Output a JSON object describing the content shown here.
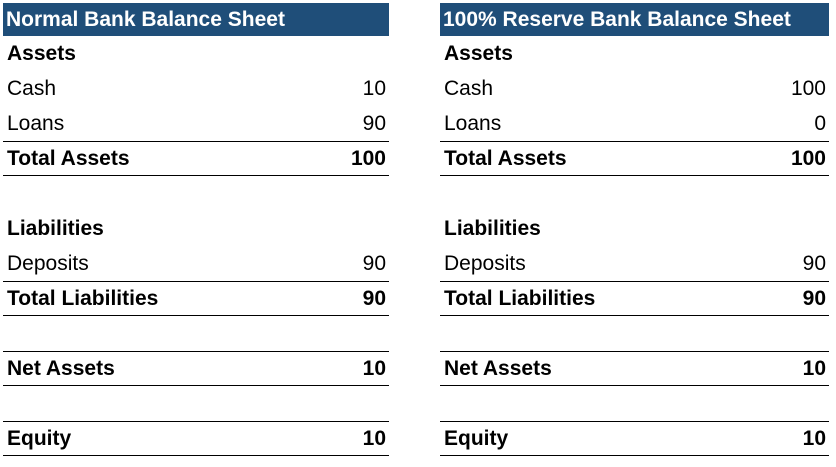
{
  "normal": {
    "title": "Normal Bank Balance Sheet",
    "assets_heading": "Assets",
    "cash_label": "Cash",
    "cash_value": "10",
    "loans_label": "Loans",
    "loans_value": "90",
    "total_assets_label": "Total Assets",
    "total_assets_value": "100",
    "liabilities_heading": "Liabilities",
    "deposits_label": "Deposits",
    "deposits_value": "90",
    "total_liabilities_label": "Total Liabilities",
    "total_liabilities_value": "90",
    "net_assets_label": "Net Assets",
    "net_assets_value": "10",
    "equity_label": "Equity",
    "equity_value": "10"
  },
  "reserve": {
    "title": "100% Reserve Bank Balance Sheet",
    "assets_heading": "Assets",
    "cash_label": "Cash",
    "cash_value": "100",
    "loans_label": "Loans",
    "loans_value": "0",
    "total_assets_label": "Total Assets",
    "total_assets_value": "100",
    "liabilities_heading": "Liabilities",
    "deposits_label": "Deposits",
    "deposits_value": "90",
    "total_liabilities_label": "Total Liabilities",
    "total_liabilities_value": "90",
    "net_assets_label": "Net Assets",
    "net_assets_value": "10",
    "equity_label": "Equity",
    "equity_value": "10"
  },
  "colors": {
    "header_background": "#1f4e79",
    "header_text": "#ffffff"
  }
}
